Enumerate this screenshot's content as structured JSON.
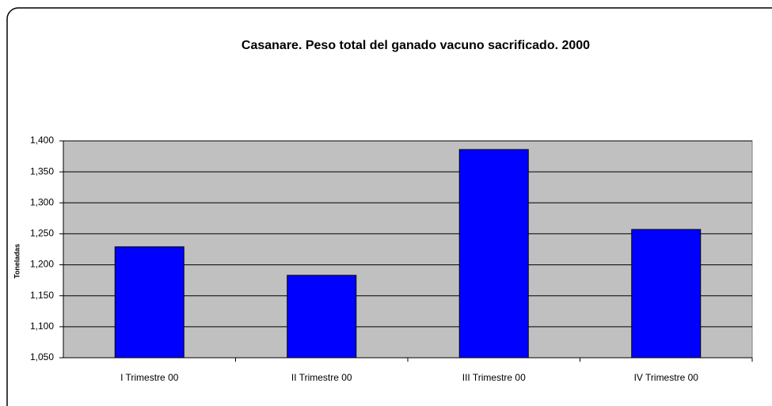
{
  "chart_data": {
    "type": "bar",
    "title": "Casanare. Peso total del ganado vacuno sacrificado.  2000",
    "y_label": "Toneladas",
    "categories": [
      "I Trimestre 00",
      "II Trimestre 00",
      "III Trimestre 00",
      "IV Trimestre 00"
    ],
    "values": [
      1229,
      1183,
      1386,
      1257
    ],
    "color": "#0000ff",
    "ylim": [
      1050,
      1400
    ],
    "yticks": [
      {
        "value": 1050,
        "label": "1,050"
      },
      {
        "value": 1100,
        "label": "1,100"
      },
      {
        "value": 1150,
        "label": "1,150"
      },
      {
        "value": 1200,
        "label": "1,200"
      },
      {
        "value": 1250,
        "label": "1,250"
      },
      {
        "value": 1300,
        "label": "1,300"
      },
      {
        "value": 1350,
        "label": "1,350"
      },
      {
        "value": 1400,
        "label": "1,400"
      }
    ],
    "grid": true
  }
}
